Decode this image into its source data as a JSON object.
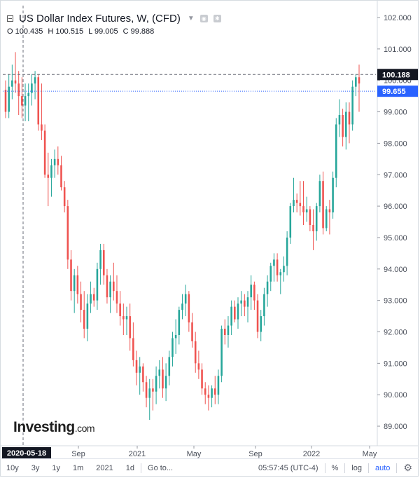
{
  "header": {
    "title": "US Dollar Index Futures, W, (CFD)",
    "ohlc": [
      {
        "key": "O",
        "value": "100.435"
      },
      {
        "key": "H",
        "value": "100.515"
      },
      {
        "key": "L",
        "value": "99.005"
      },
      {
        "key": "C",
        "value": "99.888"
      }
    ]
  },
  "logo": {
    "main": "Investing",
    "suffix": ".com"
  },
  "bottom_bar": {
    "ranges": [
      "10y",
      "3y",
      "1y",
      "1m",
      "2021",
      "1d"
    ],
    "goto": "Go to...",
    "time": "05:57:45 (UTC-4)",
    "percent": "%",
    "log": "log",
    "auto": "auto",
    "settings_icon": "gear-icon"
  },
  "colors": {
    "up": "#26a69a",
    "down": "#ef5350",
    "current_price_line": "#2962ff",
    "crosshair_label": "#131722"
  },
  "chart_data": {
    "type": "candlestick",
    "interval": "W",
    "ylim": [
      88.5,
      102.5
    ],
    "y_ticks": [
      "102.000",
      "101.000",
      "100.000",
      "99.000",
      "98.000",
      "97.000",
      "96.000",
      "95.000",
      "94.000",
      "93.000",
      "92.000",
      "91.000",
      "90.000",
      "89.000"
    ],
    "x_ticks": [
      "Sep",
      "2021",
      "May",
      "Sep",
      "2022",
      "May"
    ],
    "crosshair": {
      "date_label": "2020-05-18",
      "price_label": "100.188"
    },
    "current_price": "99.655",
    "candles": [
      [
        99.7,
        100.0,
        98.8,
        99.0
      ],
      [
        99.0,
        100.2,
        98.8,
        99.8
      ],
      [
        99.8,
        100.5,
        99.4,
        100.0
      ],
      [
        100.0,
        100.9,
        99.6,
        99.9
      ],
      [
        99.9,
        100.3,
        98.9,
        99.5
      ],
      [
        99.5,
        100.1,
        98.8,
        99.2
      ],
      [
        99.2,
        99.9,
        98.7,
        99.5
      ],
      [
        99.5,
        99.9,
        98.7,
        99.6
      ],
      [
        99.6,
        100.2,
        99.2,
        99.9
      ],
      [
        99.9,
        100.3,
        99.4,
        100.1
      ],
      [
        100.1,
        100.2,
        98.4,
        98.6
      ],
      [
        98.6,
        99.9,
        98.1,
        98.4
      ],
      [
        98.4,
        98.6,
        96.9,
        97.0
      ],
      [
        97.0,
        97.7,
        96.0,
        96.9
      ],
      [
        96.9,
        97.5,
        96.3,
        97.3
      ],
      [
        97.3,
        97.8,
        96.9,
        97.5
      ],
      [
        97.5,
        97.9,
        97.0,
        97.3
      ],
      [
        97.3,
        97.6,
        96.5,
        96.6
      ],
      [
        96.6,
        96.8,
        95.8,
        96.0
      ],
      [
        96.0,
        96.2,
        94.0,
        94.3
      ],
      [
        94.3,
        94.6,
        93.0,
        93.3
      ],
      [
        93.3,
        94.0,
        92.6,
        93.8
      ],
      [
        93.8,
        94.1,
        92.9,
        93.2
      ],
      [
        93.2,
        93.6,
        92.3,
        92.7
      ],
      [
        92.7,
        93.3,
        91.8,
        92.1
      ],
      [
        92.1,
        93.2,
        91.7,
        92.9
      ],
      [
        92.9,
        93.6,
        92.6,
        93.2
      ],
      [
        93.2,
        93.4,
        92.8,
        93.0
      ],
      [
        93.0,
        94.2,
        92.7,
        94.0
      ],
      [
        94.0,
        94.8,
        93.5,
        94.6
      ],
      [
        94.6,
        94.8,
        93.5,
        93.8
      ],
      [
        93.8,
        94.0,
        92.9,
        93.1
      ],
      [
        93.1,
        93.8,
        92.6,
        93.6
      ],
      [
        93.6,
        94.2,
        93.0,
        93.3
      ],
      [
        93.3,
        93.8,
        92.6,
        92.9
      ],
      [
        92.9,
        93.3,
        92.2,
        92.5
      ],
      [
        92.5,
        92.9,
        91.9,
        92.4
      ],
      [
        92.4,
        92.8,
        91.9,
        92.5
      ],
      [
        92.5,
        92.9,
        91.4,
        91.8
      ],
      [
        91.8,
        92.3,
        90.9,
        91.1
      ],
      [
        91.1,
        91.4,
        90.3,
        90.7
      ],
      [
        90.7,
        91.2,
        90.0,
        90.9
      ],
      [
        90.9,
        91.0,
        90.1,
        90.4
      ],
      [
        90.4,
        90.6,
        89.6,
        89.9
      ],
      [
        89.9,
        90.5,
        89.2,
        90.2
      ],
      [
        90.2,
        90.5,
        89.5,
        90.1
      ],
      [
        90.1,
        90.9,
        89.7,
        90.6
      ],
      [
        90.6,
        91.1,
        90.2,
        90.8
      ],
      [
        90.8,
        91.2,
        89.9,
        90.2
      ],
      [
        90.2,
        91.0,
        89.8,
        90.6
      ],
      [
        90.6,
        91.4,
        90.3,
        91.2
      ],
      [
        91.2,
        92.0,
        90.9,
        91.8
      ],
      [
        91.8,
        92.4,
        91.3,
        91.9
      ],
      [
        91.9,
        92.8,
        91.6,
        92.7
      ],
      [
        92.7,
        93.2,
        92.4,
        92.9
      ],
      [
        92.9,
        93.5,
        92.5,
        93.2
      ],
      [
        93.2,
        93.3,
        92.0,
        92.3
      ],
      [
        92.3,
        92.6,
        91.5,
        91.7
      ],
      [
        91.7,
        92.0,
        90.7,
        91.0
      ],
      [
        91.0,
        91.4,
        90.5,
        90.8
      ],
      [
        90.8,
        91.0,
        90.0,
        90.2
      ],
      [
        90.2,
        90.4,
        89.7,
        90.0
      ],
      [
        90.0,
        90.3,
        89.5,
        89.9
      ],
      [
        89.9,
        90.3,
        89.6,
        90.2
      ],
      [
        90.2,
        90.6,
        89.7,
        90.0
      ],
      [
        90.0,
        90.8,
        89.7,
        90.6
      ],
      [
        90.6,
        92.2,
        90.4,
        92.1
      ],
      [
        92.1,
        92.4,
        91.6,
        91.9
      ],
      [
        91.9,
        92.5,
        91.5,
        92.2
      ],
      [
        92.2,
        93.0,
        91.9,
        92.8
      ],
      [
        92.8,
        93.0,
        92.3,
        92.4
      ],
      [
        92.4,
        93.1,
        92.1,
        92.9
      ],
      [
        92.9,
        93.3,
        92.5,
        93.0
      ],
      [
        93.0,
        93.2,
        92.5,
        92.8
      ],
      [
        92.8,
        93.3,
        92.3,
        93.1
      ],
      [
        93.1,
        93.8,
        92.7,
        93.5
      ],
      [
        93.5,
        93.6,
        92.7,
        93.0
      ],
      [
        93.0,
        93.2,
        91.8,
        92.0
      ],
      [
        92.0,
        92.7,
        91.7,
        92.5
      ],
      [
        92.5,
        93.4,
        92.2,
        93.2
      ],
      [
        93.2,
        93.8,
        92.8,
        93.6
      ],
      [
        93.6,
        94.2,
        93.3,
        94.1
      ],
      [
        94.1,
        94.5,
        93.6,
        94.3
      ],
      [
        94.3,
        94.5,
        93.6,
        93.8
      ],
      [
        93.8,
        94.0,
        93.2,
        93.9
      ],
      [
        93.9,
        94.4,
        93.6,
        94.1
      ],
      [
        94.1,
        95.2,
        93.8,
        95.0
      ],
      [
        95.0,
        96.1,
        94.8,
        96.0
      ],
      [
        96.0,
        96.9,
        95.8,
        96.2
      ],
      [
        96.2,
        96.4,
        95.8,
        96.1
      ],
      [
        96.1,
        96.8,
        95.7,
        96.0
      ],
      [
        96.0,
        96.8,
        95.4,
        95.8
      ],
      [
        95.8,
        96.3,
        95.5,
        95.9
      ],
      [
        95.9,
        96.0,
        95.2,
        95.4
      ],
      [
        95.4,
        95.9,
        94.6,
        95.2
      ],
      [
        95.2,
        96.1,
        94.9,
        96.0
      ],
      [
        96.0,
        97.0,
        95.8,
        96.8
      ],
      [
        96.8,
        97.1,
        95.1,
        95.3
      ],
      [
        95.3,
        96.0,
        95.2,
        95.9
      ],
      [
        95.9,
        96.2,
        95.1,
        95.8
      ],
      [
        95.8,
        97.1,
        95.6,
        96.9
      ],
      [
        96.9,
        98.8,
        96.6,
        98.6
      ],
      [
        98.6,
        99.4,
        98.2,
        98.9
      ],
      [
        98.9,
        99.1,
        97.9,
        98.2
      ],
      [
        98.2,
        99.3,
        97.8,
        99.0
      ],
      [
        99.0,
        99.3,
        98.0,
        98.6
      ],
      [
        98.6,
        100.0,
        98.4,
        99.8
      ],
      [
        99.8,
        100.2,
        99.5,
        100.1
      ],
      [
        100.1,
        100.5,
        99.0,
        99.9
      ]
    ]
  }
}
